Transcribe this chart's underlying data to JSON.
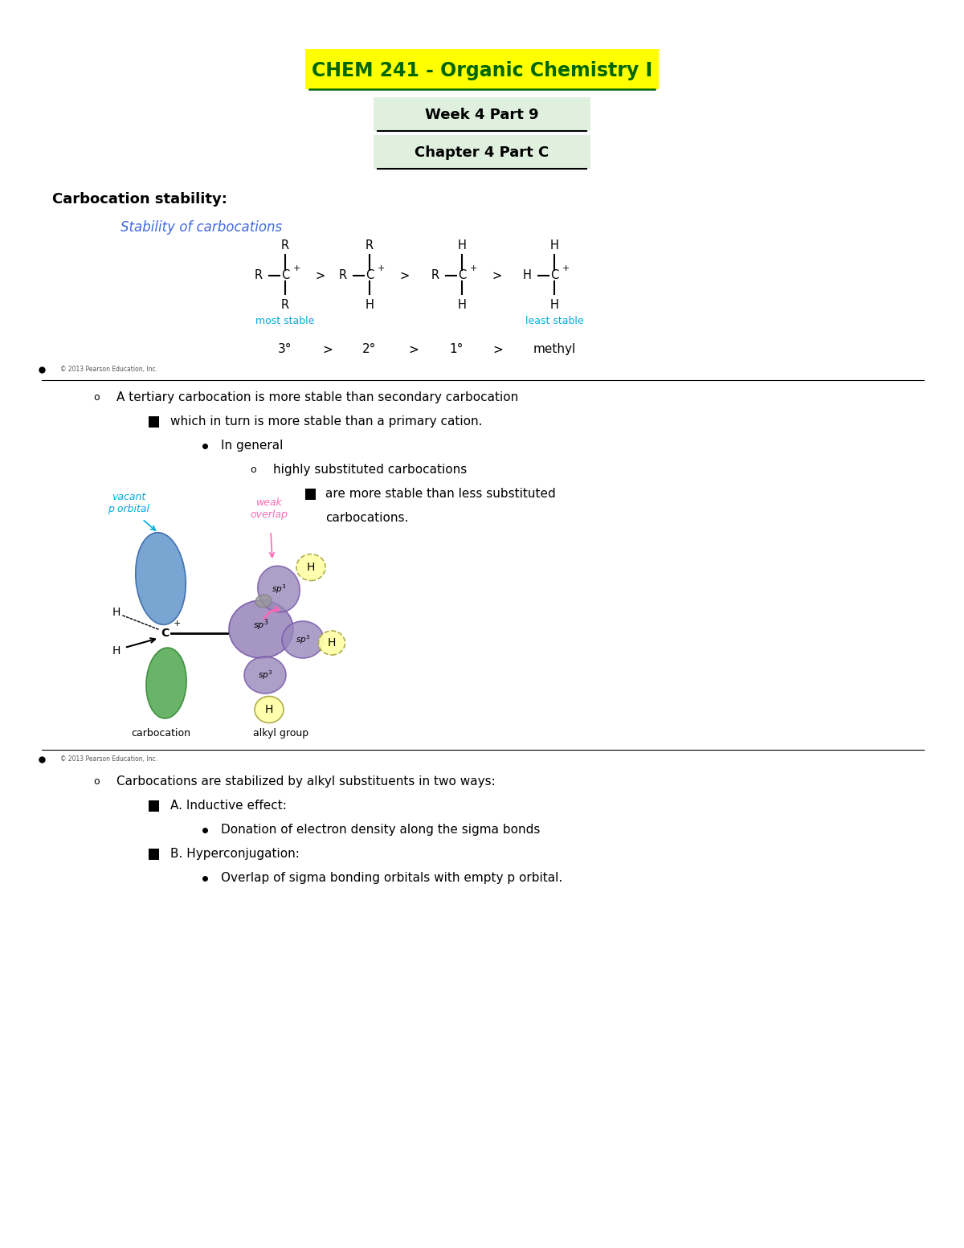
{
  "title1": "CHEM 241 - Organic Chemistry I",
  "title2": "Week 4 Part 9",
  "title3": "Chapter 4 Part C",
  "title1_color": "#006600",
  "title1_bg": "#FFFF00",
  "title2_bg": "#DFF0DE",
  "title3_bg": "#DFF0DE",
  "section1_header": "Carbocation stability:",
  "stability_subtitle": "Stability of carbocations",
  "stability_subtitle_color": "#4169E1",
  "stable_color": "#00AADD",
  "copyright": "© 2013 Pearson Education, Inc.",
  "bullet1": "A tertiary carbocation is more stable than secondary carbocation",
  "bullet2": "which in turn is more stable than a primary cation.",
  "bullet3": "In general",
  "bullet4": "highly substituted carbocations",
  "bullet5": "are more stable than less substituted",
  "bullet5b": "carbocations.",
  "vacant_label": "vacant\np orbital",
  "vacant_color": "#00AADD",
  "weak_overlap_label": "weak\noverlap",
  "weak_overlap_color": "#FF69B4",
  "carbocation_label": "carbocation",
  "alkyl_label": "alkyl group",
  "bullet6": "Carbocations are stabilized by alkyl substituents in two ways:",
  "bullet7": "A. Inductive effect:",
  "bullet8": "Donation of electron density along the sigma bonds",
  "bullet9": "B. Hyperconjugation:",
  "bullet10": "Overlap of sigma bonding orbitals with empty p orbital.",
  "bg_color": "#FFFFFF"
}
